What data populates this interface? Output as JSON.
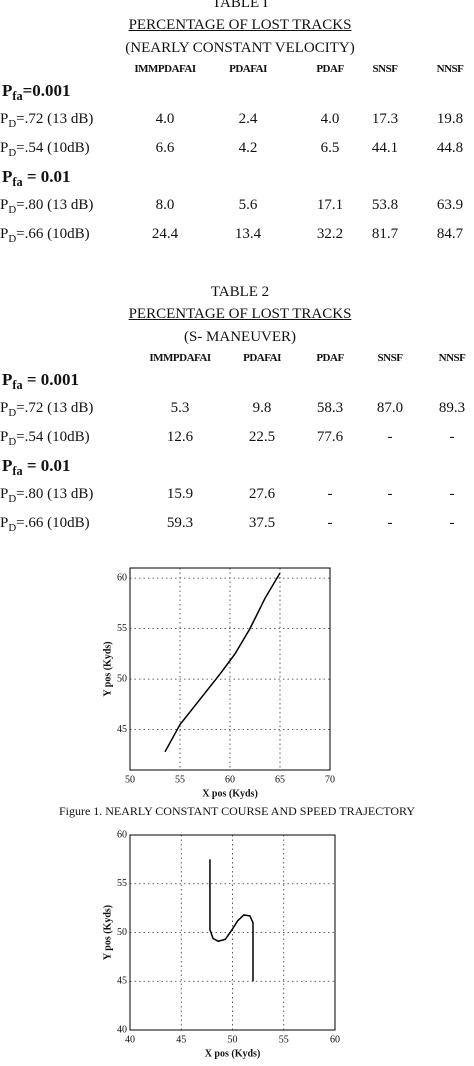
{
  "tables": [
    {
      "title": "TABLE I",
      "subtitle": "PERCENTAGE OF LOST TRACKS",
      "condition": "(NEARLY CONSTANT VELOCITY)",
      "columns": [
        "IMMPDAFAI",
        "PDAFAI",
        "PDAF",
        "SNSF",
        "NNSF"
      ],
      "groups": [
        {
          "label": {
            "p": "P",
            "sub": "fa",
            "rest": "=0.001"
          },
          "rows": [
            {
              "label": {
                "p": "P",
                "sub": "D",
                "rest": "=.72 (13 dB)"
              },
              "values": [
                "4.0",
                "2.4",
                "4.0",
                "17.3",
                "19.8"
              ]
            },
            {
              "label": {
                "p": "P",
                "sub": "D",
                "rest": "=.54 (10dB)"
              },
              "values": [
                "6.6",
                "4.2",
                "6.5",
                "44.1",
                "44.8"
              ]
            }
          ]
        },
        {
          "label": {
            "p": "P",
            "sub": "fa",
            "rest": " = 0.01"
          },
          "rows": [
            {
              "label": {
                "p": "P",
                "sub": "D",
                "rest": "=.80 (13 dB)"
              },
              "values": [
                "8.0",
                "5.6",
                "17.1",
                "53.8",
                "63.9"
              ]
            },
            {
              "label": {
                "p": "P",
                "sub": "D",
                "rest": "=.66 (10dB)"
              },
              "values": [
                "24.4",
                "13.4",
                "32.2",
                "81.7",
                "84.7"
              ]
            }
          ]
        }
      ]
    },
    {
      "title": "TABLE 2",
      "subtitle": "PERCENTAGE OF LOST TRACKS",
      "condition": "(S- MANEUVER)",
      "columns": [
        "IMMPDAFAI",
        "PDAFAI",
        "PDAF",
        "SNSF",
        "NNSF"
      ],
      "groups": [
        {
          "label": {
            "p": "P",
            "sub": "fa",
            "rest": " = 0.001"
          },
          "rows": [
            {
              "label": {
                "p": "P",
                "sub": "D",
                "rest": "=.72 (13 dB)"
              },
              "values": [
                "5.3",
                "9.8",
                "58.3",
                "87.0",
                "89.3"
              ]
            },
            {
              "label": {
                "p": "P",
                "sub": "D",
                "rest": "=.54 (10dB)"
              },
              "values": [
                "12.6",
                "22.5",
                "77.6",
                "-",
                "-"
              ]
            }
          ]
        },
        {
          "label": {
            "p": "P",
            "sub": "fa",
            "rest": " = 0.01"
          },
          "rows": [
            {
              "label": {
                "p": "P",
                "sub": "D",
                "rest": "=.80 (13 dB)"
              },
              "values": [
                "15.9",
                "27.6",
                "-",
                "-",
                "-"
              ]
            },
            {
              "label": {
                "p": "P",
                "sub": "D",
                "rest": "=.66 (10dB)"
              },
              "values": [
                "59.3",
                "37.5",
                "-",
                "-",
                "-"
              ]
            }
          ]
        }
      ]
    }
  ],
  "figures": [
    {
      "type": "line",
      "x_label": "X pos (Kyds)",
      "y_label": "Y pos (Kyds)",
      "caption": "Figure 1. NEARLY CONSTANT COURSE  AND SPEED TRAJECTORY",
      "xlim": [
        50,
        70
      ],
      "ylim": [
        41,
        61
      ],
      "xticks": [
        50,
        55,
        60,
        65,
        70
      ],
      "yticks": [
        45,
        50,
        55,
        60
      ],
      "grid": true,
      "x": [
        53.5,
        55,
        57,
        59,
        60.5,
        62,
        63.5,
        65
      ],
      "y": [
        42.8,
        45.5,
        48,
        50.5,
        52.5,
        55,
        58,
        60.5
      ],
      "color": "#000000"
    },
    {
      "type": "line",
      "x_label": "X pos (Kyds)",
      "y_label": "Y pos (Kyds)",
      "xlim": [
        40,
        60
      ],
      "ylim": [
        40,
        60
      ],
      "xticks": [
        40,
        45,
        50,
        55,
        60
      ],
      "yticks": [
        40,
        45,
        50,
        55,
        60
      ],
      "grid": true,
      "x": [
        47.8,
        47.8,
        48.1,
        48.6,
        49.3,
        49.9,
        50.5,
        51.1,
        51.7,
        52,
        52
      ],
      "y": [
        57.5,
        50.3,
        49.4,
        49.1,
        49.3,
        50.2,
        51.2,
        51.8,
        51.7,
        51,
        45
      ],
      "color": "#000000"
    }
  ]
}
